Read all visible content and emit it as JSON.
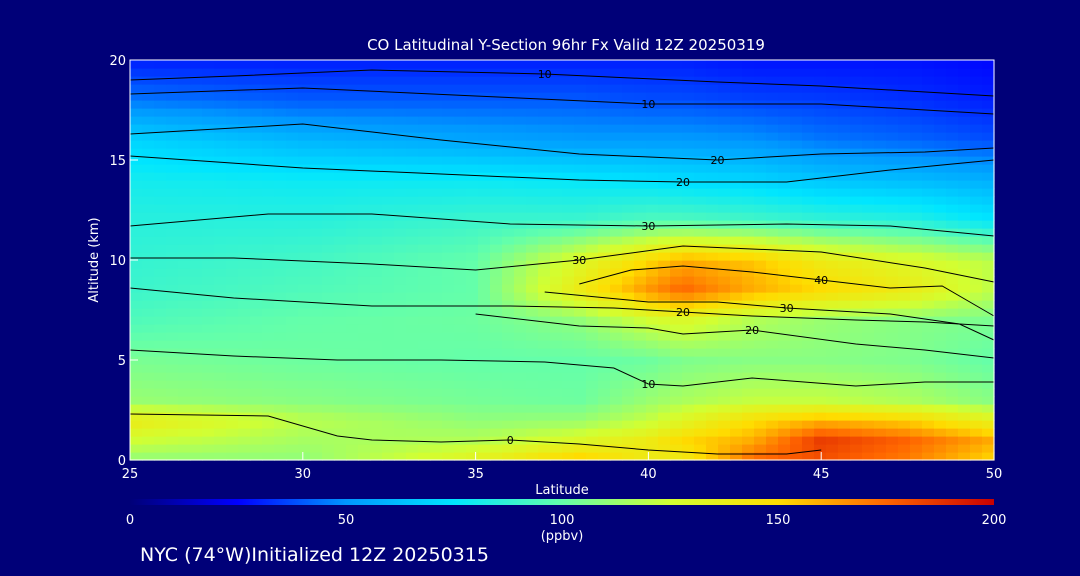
{
  "chart_data": {
    "type": "heatmap",
    "title": "CO Latitudinal Y-Section 96hr  Fx Valid 12Z 20250319",
    "xlabel": "Latitude",
    "ylabel": "Altitude (km)",
    "xlim": [
      25,
      50
    ],
    "ylim": [
      0,
      20
    ],
    "x_ticks": [
      "25",
      "30",
      "35",
      "40",
      "45",
      "50"
    ],
    "y_ticks": [
      "0",
      "5",
      "10",
      "15",
      "20"
    ],
    "colorbar": {
      "label": "(ppbv)",
      "range": [
        0,
        200
      ],
      "ticks": [
        "0",
        "50",
        "100",
        "150",
        "200"
      ],
      "colors": [
        "#000078",
        "#0000ff",
        "#0096ff",
        "#00e6ff",
        "#64ffaa",
        "#d2ff32",
        "#ffdc00",
        "#ff6400",
        "#c80000"
      ]
    },
    "grid": false,
    "field": {
      "x": [
        25,
        30,
        35,
        38,
        40,
        41,
        43,
        45,
        47.5,
        50
      ],
      "y": [
        0,
        1,
        2,
        3,
        5,
        7,
        8.5,
        10,
        12,
        14,
        16,
        18,
        20
      ],
      "values": [
        [
          110,
          110,
          135,
          155,
          140,
          140,
          175,
          180,
          170,
          150
        ],
        [
          125,
          115,
          118,
          130,
          140,
          150,
          160,
          185,
          175,
          160
        ],
        [
          140,
          120,
          110,
          112,
          122,
          132,
          148,
          158,
          152,
          135
        ],
        [
          112,
          108,
          104,
          102,
          112,
          116,
          122,
          122,
          117,
          108
        ],
        [
          105,
          102,
          100,
          100,
          102,
          106,
          108,
          108,
          106,
          100
        ],
        [
          95,
          100,
          102,
          110,
          125,
          130,
          118,
          112,
          108,
          105
        ],
        [
          90,
          95,
          100,
          140,
          165,
          175,
          160,
          150,
          140,
          120
        ],
        [
          88,
          92,
          100,
          130,
          150,
          160,
          155,
          140,
          130,
          120
        ],
        [
          85,
          85,
          90,
          90,
          95,
          95,
          92,
          88,
          85,
          75
        ],
        [
          80,
          78,
          78,
          76,
          74,
          72,
          70,
          65,
          62,
          58
        ],
        [
          70,
          60,
          55,
          52,
          52,
          52,
          50,
          45,
          42,
          38
        ],
        [
          45,
          40,
          40,
          40,
          38,
          38,
          36,
          35,
          33,
          30
        ],
        [
          30,
          30,
          30,
          30,
          30,
          30,
          28,
          28,
          28,
          26
        ]
      ]
    },
    "contours": [
      {
        "label": "10",
        "points": [
          [
            25,
            19.0
          ],
          [
            28,
            19.2
          ],
          [
            32,
            19.5
          ],
          [
            37,
            19.3
          ],
          [
            42,
            18.9
          ],
          [
            45,
            18.7
          ],
          [
            50,
            18.2
          ]
        ]
      },
      {
        "label": "10",
        "points": [
          [
            25,
            18.3
          ],
          [
            30,
            18.6
          ],
          [
            35,
            18.2
          ],
          [
            40,
            17.8
          ],
          [
            45,
            17.8
          ],
          [
            50,
            17.3
          ]
        ]
      },
      {
        "label": "20",
        "points": [
          [
            25,
            16.3
          ],
          [
            30,
            16.8
          ],
          [
            34,
            16.0
          ],
          [
            38,
            15.3
          ],
          [
            42,
            15.0
          ],
          [
            45,
            15.3
          ],
          [
            48,
            15.4
          ],
          [
            50,
            15.6
          ]
        ]
      },
      {
        "label": "20",
        "points": [
          [
            25,
            15.2
          ],
          [
            30,
            14.6
          ],
          [
            34,
            14.3
          ],
          [
            38,
            14.0
          ],
          [
            41,
            13.9
          ],
          [
            44,
            13.9
          ],
          [
            47,
            14.5
          ],
          [
            50,
            15.0
          ]
        ]
      },
      {
        "label": "30",
        "points": [
          [
            25,
            11.7
          ],
          [
            29,
            12.3
          ],
          [
            32,
            12.3
          ],
          [
            36,
            11.8
          ],
          [
            40,
            11.7
          ],
          [
            44,
            11.8
          ],
          [
            47,
            11.7
          ],
          [
            50,
            11.2
          ]
        ]
      },
      {
        "label": "30",
        "points": [
          [
            25,
            10.1
          ],
          [
            28,
            10.1
          ],
          [
            32,
            9.8
          ],
          [
            35,
            9.5
          ],
          [
            38,
            10.0
          ],
          [
            41,
            10.7
          ],
          [
            45,
            10.4
          ],
          [
            48,
            9.6
          ],
          [
            50,
            8.9
          ]
        ]
      },
      {
        "label": "20",
        "points": [
          [
            25,
            8.6
          ],
          [
            28,
            8.1
          ],
          [
            32,
            7.7
          ],
          [
            36,
            7.7
          ],
          [
            39,
            7.6
          ],
          [
            41,
            7.4
          ],
          [
            43,
            7.2
          ],
          [
            46,
            7.0
          ],
          [
            48,
            6.9
          ],
          [
            50,
            6.7
          ]
        ]
      },
      {
        "label": "40",
        "points": [
          [
            38,
            8.8
          ],
          [
            39.5,
            9.5
          ],
          [
            41,
            9.7
          ],
          [
            43,
            9.4
          ],
          [
            45,
            9.0
          ],
          [
            47,
            8.6
          ],
          [
            48.5,
            8.7
          ],
          [
            50,
            7.2
          ]
        ]
      },
      {
        "label": "30",
        "points": [
          [
            37,
            8.4
          ],
          [
            40,
            7.9
          ],
          [
            42,
            7.9
          ],
          [
            44,
            7.6
          ],
          [
            47,
            7.3
          ],
          [
            49,
            6.8
          ],
          [
            50,
            6.0
          ]
        ]
      },
      {
        "label": "20",
        "points": [
          [
            35,
            7.3
          ],
          [
            38,
            6.7
          ],
          [
            40,
            6.6
          ],
          [
            41,
            6.3
          ],
          [
            43,
            6.5
          ],
          [
            46,
            5.8
          ],
          [
            48,
            5.5
          ],
          [
            50,
            5.1
          ]
        ]
      },
      {
        "label": "10",
        "points": [
          [
            25,
            5.5
          ],
          [
            28,
            5.2
          ],
          [
            31,
            5.0
          ],
          [
            34,
            5.0
          ],
          [
            37,
            4.9
          ],
          [
            39,
            4.6
          ],
          [
            40,
            3.8
          ],
          [
            41,
            3.7
          ],
          [
            43,
            4.1
          ],
          [
            46,
            3.7
          ],
          [
            48,
            3.9
          ],
          [
            50,
            3.9
          ]
        ]
      },
      {
        "label": "0",
        "points": [
          [
            25,
            2.3
          ],
          [
            29,
            2.2
          ],
          [
            31,
            1.2
          ],
          [
            32,
            1.0
          ],
          [
            34,
            0.9
          ],
          [
            36,
            1.0
          ],
          [
            38,
            0.8
          ],
          [
            40,
            0.5
          ],
          [
            42,
            0.3
          ],
          [
            44,
            0.3
          ],
          [
            45,
            0.5
          ]
        ]
      }
    ],
    "annotation_left": "NYC (74°W)Initialized 12Z 20250315"
  }
}
